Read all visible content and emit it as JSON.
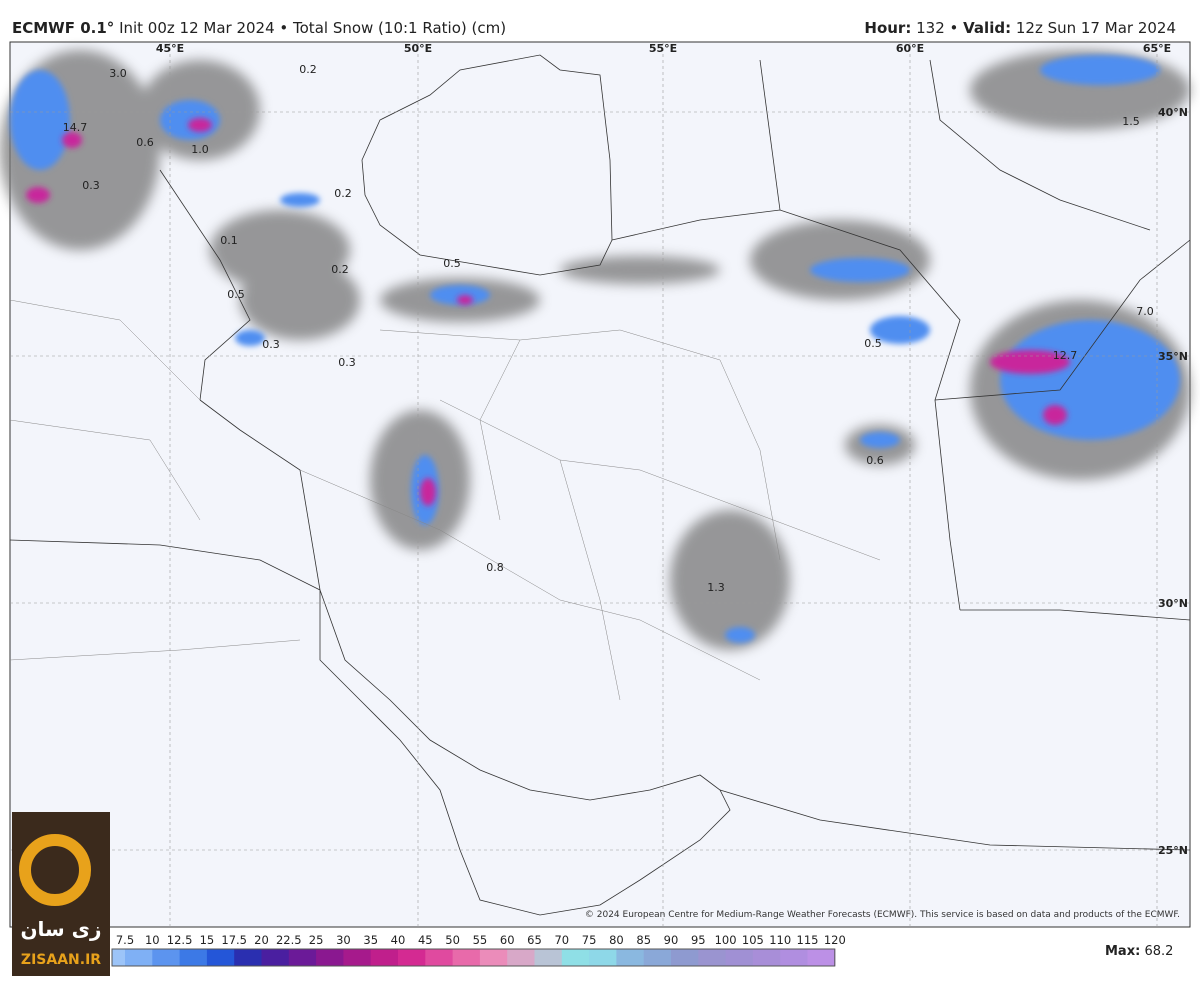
{
  "header": {
    "model": "ECMWF 0.1°",
    "init": "Init 00z 12 Mar 2024 • Total Snow (10:1 Ratio) (cm)",
    "hour_key": "Hour:",
    "hour": "132 •",
    "valid_key": "Valid:",
    "valid": "12z Sun 17 Mar 2024"
  },
  "map": {
    "lon_labels": [
      "45°E",
      "50°E",
      "55°E",
      "60°E",
      "65°E"
    ],
    "lat_labels": [
      "40°N",
      "35°N",
      "30°N",
      "25°N"
    ],
    "value_labels": [
      "3.0",
      "14.7",
      "0.6",
      "0.3",
      "1.0",
      "0.2",
      "0.2",
      "0.1",
      "0.2",
      "0.5",
      "0.5",
      "0.3",
      "0.3",
      "0.5",
      "0.8",
      "1.3",
      "0.6",
      "12.7",
      "7.0",
      "1.5"
    ],
    "credit": "© 2024 European Centre for Medium-Range Weather Forecasts (ECMWF). This service is based on data and products of the ECMWF."
  },
  "colorbar": {
    "ticks": [
      "7.5",
      "10",
      "12.5",
      "15",
      "17.5",
      "20",
      "22.5",
      "25",
      "30",
      "35",
      "40",
      "45",
      "50",
      "55",
      "60",
      "65",
      "70",
      "75",
      "80",
      "85",
      "90",
      "95",
      "100",
      "105",
      "110",
      "115",
      "120"
    ],
    "max_key": "Max:",
    "max": "68.2"
  },
  "logo": {
    "text": "زی سان",
    "site": "ZISAAN.IR"
  }
}
